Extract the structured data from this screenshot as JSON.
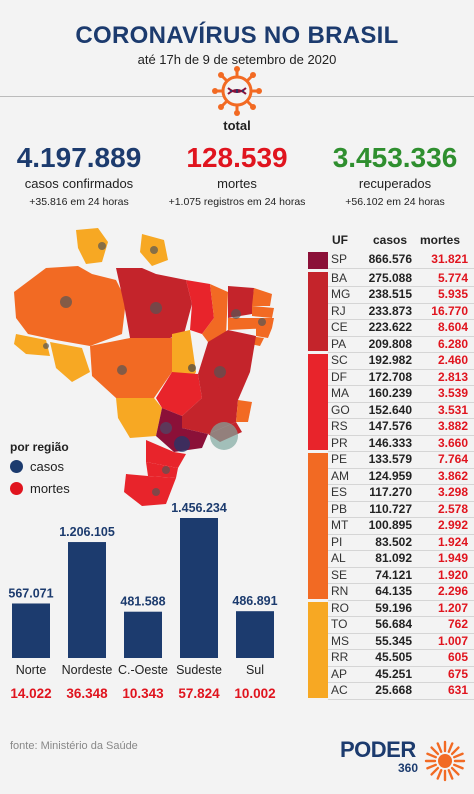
{
  "header": {
    "title": "CORONAVÍRUS NO BRASIL",
    "subtitle": "até 17h de 9 de setembro de 2020",
    "total_label": "total"
  },
  "totals": {
    "cases": {
      "value": "4.197.889",
      "label": "casos confirmados",
      "delta": "+35.816 em 24 horas",
      "color": "#1c3b6e"
    },
    "deaths": {
      "value": "128.539",
      "label": "mortes",
      "delta": "+1.075 registros em 24 horas",
      "color": "#e0141e"
    },
    "recovered": {
      "value": "3.453.336",
      "label": "recuperados",
      "delta": "+56.102 em 24 horas",
      "color": "#2f8f2f"
    }
  },
  "legend": {
    "title": "por região",
    "items": [
      {
        "label": "casos",
        "color": "#1c3b6e"
      },
      {
        "label": "mortes",
        "color": "#e0141e"
      }
    ]
  },
  "table": {
    "headers": {
      "uf": "UF",
      "casos": "casos",
      "mortes": "mortes"
    },
    "tier_colors": [
      "#8b1038",
      "#c4242b",
      "#e8242b",
      "#f26a23",
      "#f7a823"
    ]
  },
  "chart_data": [
    {
      "type": "bar",
      "categories": [
        "Norte",
        "Nordeste",
        "C.-Oeste",
        "Sudeste",
        "Sul"
      ],
      "series": [
        {
          "name": "casos",
          "values": [
            567071,
            1206105,
            481588,
            1456234,
            486891
          ]
        },
        {
          "name": "mortes",
          "values": [
            14022,
            36348,
            10343,
            57824,
            10002
          ]
        }
      ],
      "value_labels": [
        "567.071",
        "1.206.105",
        "481.588",
        "1.456.234",
        "486.891"
      ],
      "death_labels": [
        "14.022",
        "36.348",
        "10.343",
        "57.824",
        "10.002"
      ],
      "bar_color": "#1c3b6e",
      "ylim": [
        0,
        1456234
      ]
    },
    {
      "type": "table",
      "columns": [
        "UF",
        "casos",
        "mortes"
      ],
      "rows": [
        {
          "uf": "SP",
          "casos": "866.576",
          "mortes": "31.821",
          "tier": 0
        },
        {
          "uf": "BA",
          "casos": "275.088",
          "mortes": "5.774",
          "tier": 1
        },
        {
          "uf": "MG",
          "casos": "238.515",
          "mortes": "5.935",
          "tier": 1
        },
        {
          "uf": "RJ",
          "casos": "233.873",
          "mortes": "16.770",
          "tier": 1
        },
        {
          "uf": "CE",
          "casos": "223.622",
          "mortes": "8.604",
          "tier": 1
        },
        {
          "uf": "PA",
          "casos": "209.808",
          "mortes": "6.280",
          "tier": 1
        },
        {
          "uf": "SC",
          "casos": "192.982",
          "mortes": "2.460",
          "tier": 2
        },
        {
          "uf": "DF",
          "casos": "172.708",
          "mortes": "2.813",
          "tier": 2
        },
        {
          "uf": "MA",
          "casos": "160.239",
          "mortes": "3.539",
          "tier": 2
        },
        {
          "uf": "GO",
          "casos": "152.640",
          "mortes": "3.531",
          "tier": 2
        },
        {
          "uf": "RS",
          "casos": "147.576",
          "mortes": "3.882",
          "tier": 2
        },
        {
          "uf": "PR",
          "casos": "146.333",
          "mortes": "3.660",
          "tier": 2
        },
        {
          "uf": "PE",
          "casos": "133.579",
          "mortes": "7.764",
          "tier": 3
        },
        {
          "uf": "AM",
          "casos": "124.959",
          "mortes": "3.862",
          "tier": 3
        },
        {
          "uf": "ES",
          "casos": "117.270",
          "mortes": "3.298",
          "tier": 3
        },
        {
          "uf": "PB",
          "casos": "110.727",
          "mortes": "2.578",
          "tier": 3
        },
        {
          "uf": "MT",
          "casos": "100.895",
          "mortes": "2.992",
          "tier": 3
        },
        {
          "uf": "PI",
          "casos": "83.502",
          "mortes": "1.924",
          "tier": 3
        },
        {
          "uf": "AL",
          "casos": "81.092",
          "mortes": "1.949",
          "tier": 3
        },
        {
          "uf": "SE",
          "casos": "74.121",
          "mortes": "1.920",
          "tier": 3
        },
        {
          "uf": "RN",
          "casos": "64.135",
          "mortes": "2.296",
          "tier": 3
        },
        {
          "uf": "RO",
          "casos": "59.196",
          "mortes": "1.207",
          "tier": 4
        },
        {
          "uf": "TO",
          "casos": "56.684",
          "mortes": "762",
          "tier": 4
        },
        {
          "uf": "MS",
          "casos": "55.345",
          "mortes": "1.007",
          "tier": 4
        },
        {
          "uf": "RR",
          "casos": "45.505",
          "mortes": "605",
          "tier": 4
        },
        {
          "uf": "AP",
          "casos": "45.251",
          "mortes": "675",
          "tier": 4
        },
        {
          "uf": "AC",
          "casos": "25.668",
          "mortes": "631",
          "tier": 4
        }
      ]
    }
  ],
  "footer": {
    "source": "fonte: Ministério da Saúde",
    "brand": "PODER",
    "brand_sub": "360"
  },
  "icons": {
    "virus": "virus-icon",
    "logo_sun": "sunburst-icon"
  }
}
